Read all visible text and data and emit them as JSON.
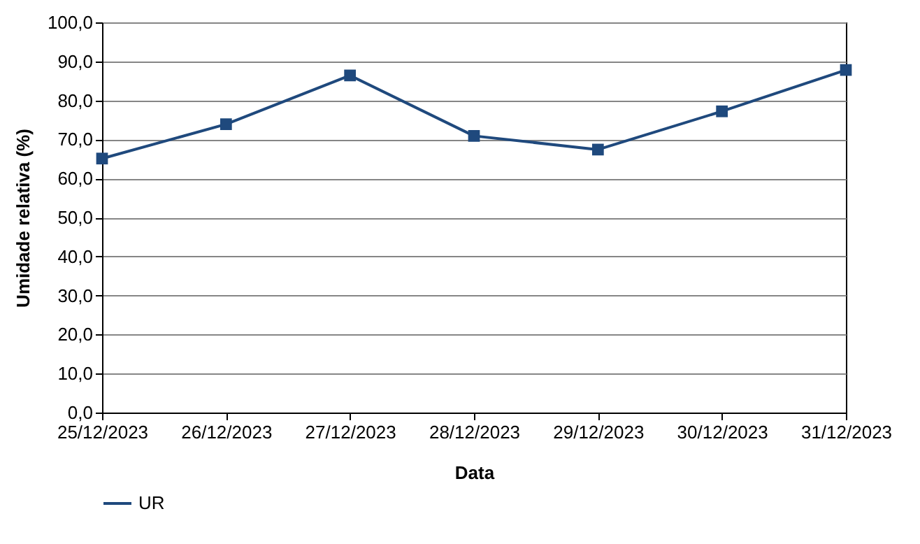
{
  "chart_data": {
    "type": "line",
    "xlabel": "Data",
    "ylabel": "Umidade relativa (%)",
    "categories": [
      "25/12/2023",
      "26/12/2023",
      "27/12/2023",
      "28/12/2023",
      "29/12/2023",
      "30/12/2023",
      "31/12/2023"
    ],
    "series": [
      {
        "name": "UR",
        "color": "#1f497d",
        "values": [
          65.1,
          73.9,
          86.4,
          70.9,
          67.4,
          77.2,
          87.8
        ]
      }
    ],
    "ylim": [
      0,
      100
    ],
    "yticks": [
      {
        "value": 0,
        "label": "0,0"
      },
      {
        "value": 10,
        "label": "10,0"
      },
      {
        "value": 20,
        "label": "20,0"
      },
      {
        "value": 30,
        "label": "30,0"
      },
      {
        "value": 40,
        "label": "40,0"
      },
      {
        "value": 50,
        "label": "50,0"
      },
      {
        "value": 60,
        "label": "60,0"
      },
      {
        "value": 70,
        "label": "70,0"
      },
      {
        "value": 80,
        "label": "80,0"
      },
      {
        "value": 90,
        "label": "90,0"
      },
      {
        "value": 100,
        "label": "100,0"
      }
    ],
    "grid": "y",
    "legend": "bottom",
    "marker": "square",
    "line_style": "solid"
  }
}
